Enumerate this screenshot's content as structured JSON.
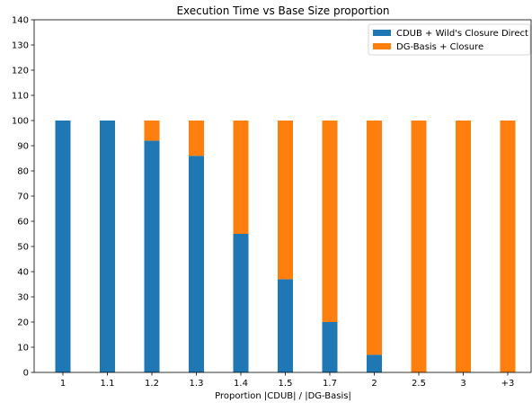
{
  "chart_data": {
    "type": "bar",
    "stacked": true,
    "title": "Execution Time vs Base Size proportion",
    "xlabel": "Proportion |CDUB| / |DG-Basis|",
    "ylabel": "",
    "ylim": [
      0,
      140
    ],
    "yticks": [
      0,
      10,
      20,
      30,
      40,
      50,
      60,
      70,
      80,
      90,
      100,
      110,
      120,
      130,
      140
    ],
    "categories": [
      "1",
      "1.1",
      "1.2",
      "1.3",
      "1.4",
      "1.5",
      "1.7",
      "2",
      "2.5",
      "3",
      "+3"
    ],
    "series": [
      {
        "name": "CDUB + Wild's Closure Direct",
        "color": "#1f77b4",
        "values": [
          100,
          100,
          92,
          86,
          55,
          37,
          20,
          7,
          0,
          0,
          0
        ]
      },
      {
        "name": "DG-Basis + Closure",
        "color": "#ff7f0e",
        "values": [
          0,
          0,
          8,
          14,
          45,
          63,
          80,
          93,
          100,
          100,
          100
        ]
      }
    ],
    "grid": false,
    "legend_position": "top-right"
  }
}
